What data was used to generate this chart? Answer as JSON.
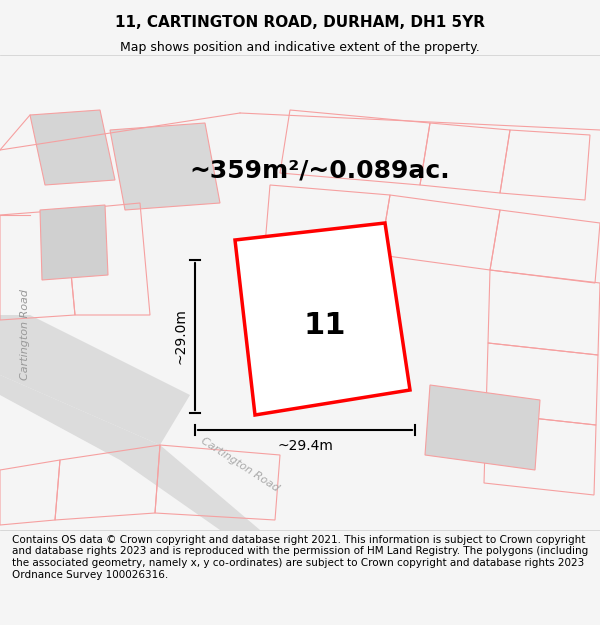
{
  "title": "11, CARTINGTON ROAD, DURHAM, DH1 5YR",
  "subtitle": "Map shows position and indicative extent of the property.",
  "area_text": "~359m²/~0.089ac.",
  "property_number": "11",
  "dim_vertical": "~29.0m",
  "dim_horizontal": "~29.4m",
  "road_label_left": "Cartington Road",
  "road_label_bottom": "Cartington Road",
  "footer_text": "Contains OS data © Crown copyright and database right 2021. This information is subject to Crown copyright and database rights 2023 and is reproduced with the permission of HM Land Registry. The polygons (including the associated geometry, namely x, y co-ordinates) are subject to Crown copyright and database rights 2023 Ordnance Survey 100026316.",
  "bg_color": "#f5f5f5",
  "map_bg": "#ffffff",
  "plot_color": "#ff0000",
  "plot_fill": "#ffffff",
  "road_bg_color": "#e8e8e8",
  "building_fill": "#d8d8d8",
  "boundary_color": "#f5a0a0",
  "title_fontsize": 11,
  "subtitle_fontsize": 9,
  "area_fontsize": 18,
  "number_fontsize": 22,
  "dim_fontsize": 10,
  "footer_fontsize": 7.5
}
